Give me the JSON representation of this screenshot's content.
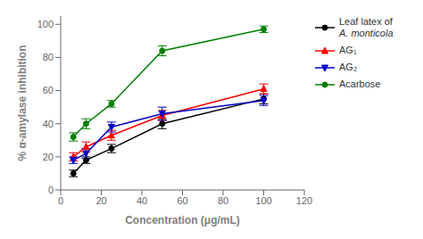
{
  "chart_data": {
    "type": "line",
    "x": [
      6.25,
      12.5,
      25,
      50,
      100
    ],
    "xlabel": "Concentration (μg/mL)",
    "ylabel": "% α-amylase inhibition",
    "xlim": [
      0,
      120
    ],
    "ylim": [
      0,
      105
    ],
    "xticks": [
      0,
      20,
      40,
      60,
      80,
      100,
      120
    ],
    "yticks": [
      0,
      20,
      40,
      60,
      80,
      100
    ],
    "grid": false,
    "legend": "upper right",
    "series": [
      {
        "name": "Leaf latex of\nA. monticola",
        "color": "#000000",
        "marker": "circle",
        "values": [
          10,
          18,
          25,
          40,
          55
        ],
        "errors": [
          2,
          2,
          2.5,
          3,
          3
        ]
      },
      {
        "name": "AG₁",
        "color": "#ff0000",
        "marker": "triangle-up",
        "values": [
          20,
          26,
          33,
          45,
          61
        ],
        "errors": [
          2.5,
          3,
          3,
          3,
          3
        ]
      },
      {
        "name": "AG₂",
        "color": "#0000cc",
        "marker": "triangle-down",
        "values": [
          18,
          22,
          38,
          46,
          54
        ],
        "errors": [
          2,
          3,
          3,
          4,
          3
        ]
      },
      {
        "name": "Acarbose",
        "color": "#008000",
        "marker": "circle",
        "values": [
          32,
          40,
          52,
          84,
          97
        ],
        "errors": [
          2.5,
          3,
          2,
          3,
          2
        ]
      }
    ]
  }
}
